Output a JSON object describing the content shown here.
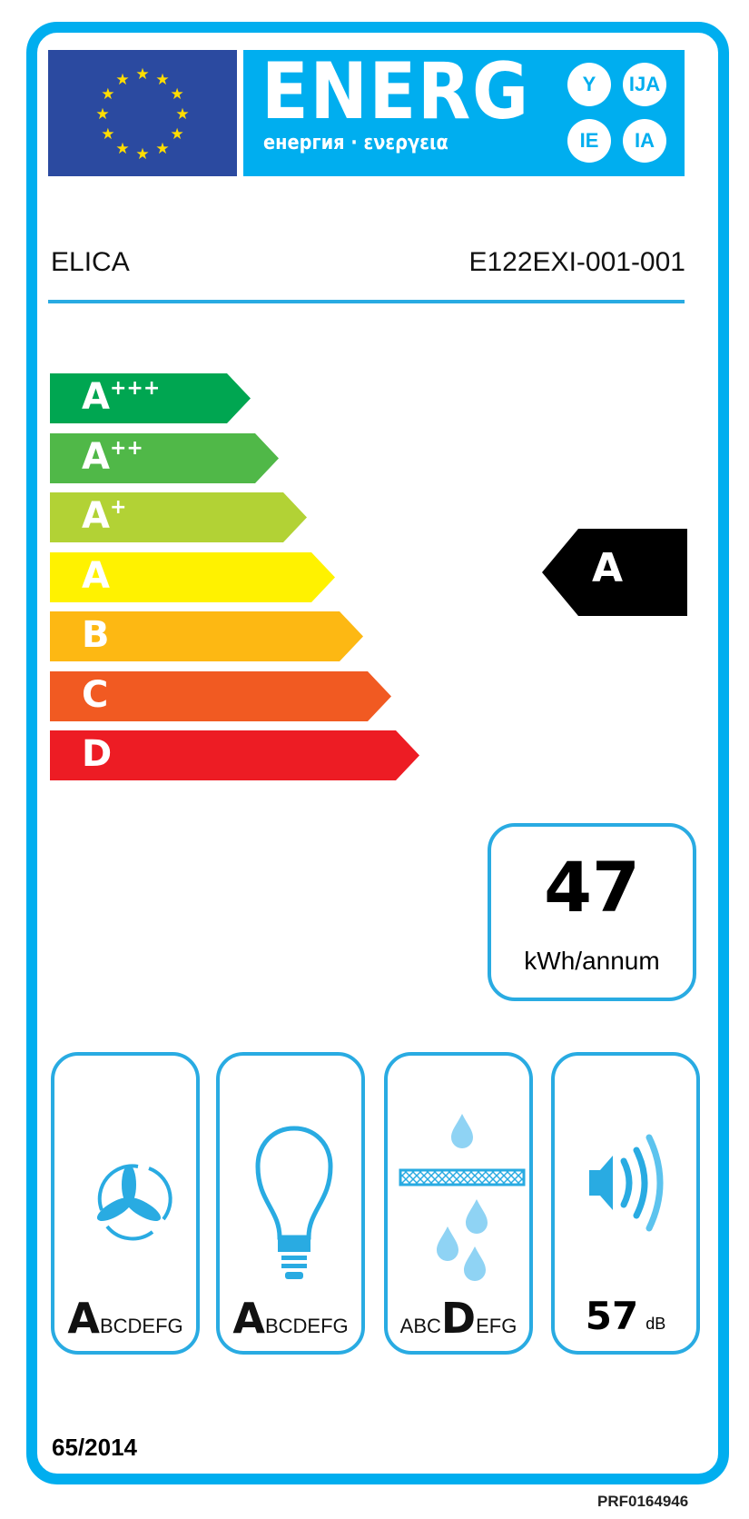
{
  "header": {
    "energy_word": "ENERG",
    "energy_subtitle": "енергия · ενεργεια",
    "language_suffixes": [
      "Y",
      "IJA",
      "IE",
      "IA"
    ],
    "supplier": "ELICA",
    "model": "E122EXI-001-001"
  },
  "energy_scale": {
    "classes": [
      {
        "letter": "A",
        "plus": "+++",
        "color": "#00a651"
      },
      {
        "letter": "A",
        "plus": "++",
        "color": "#50b848"
      },
      {
        "letter": "A",
        "plus": "+",
        "color": "#b2d235"
      },
      {
        "letter": "A",
        "plus": "",
        "color": "#fff200"
      },
      {
        "letter": "B",
        "plus": "",
        "color": "#fdb813"
      },
      {
        "letter": "C",
        "plus": "",
        "color": "#f15a22"
      },
      {
        "letter": "D",
        "plus": "",
        "color": "#ed1c24"
      }
    ],
    "rating": "A"
  },
  "consumption": {
    "value": "47",
    "unit": "kWh/annum"
  },
  "pictograms": [
    {
      "icon": "fan-icon",
      "selected": "A",
      "rest": "BCDEFG",
      "before": ""
    },
    {
      "icon": "light-bulb-icon",
      "selected": "A",
      "rest": "BCDEFG",
      "before": ""
    },
    {
      "icon": "grease-filter-icon",
      "selected": "D",
      "rest": "EFG",
      "before": "ABC"
    },
    {
      "icon": "speaker-icon",
      "value": "57",
      "unit": "dB"
    }
  ],
  "regulation": "65/2014",
  "product_code": "PRF0164946",
  "colors": {
    "frame": "#00aeef",
    "eu_blue": "#2b4aa0",
    "star": "#ffdd00",
    "icon_blue": "#29abe2"
  }
}
